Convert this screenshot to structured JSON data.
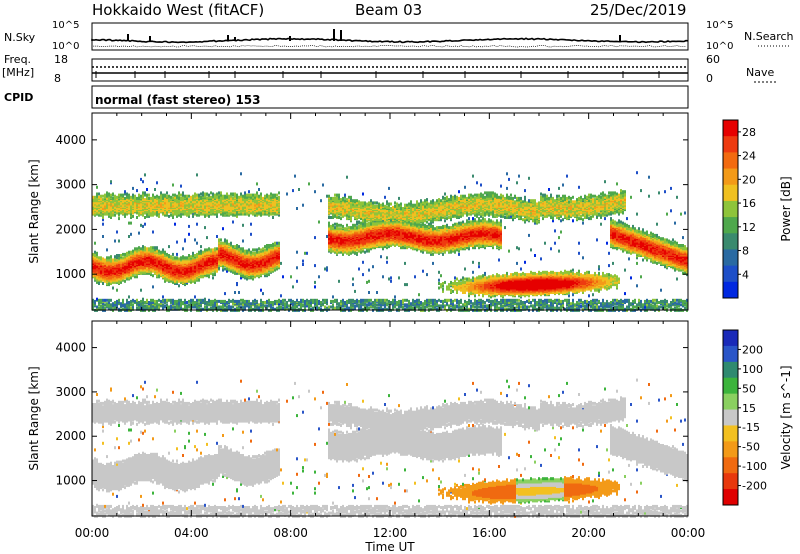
{
  "header": {
    "title": "Hokkaido West (fitACF)",
    "beam": "Beam 03",
    "date": "25/Dec/2019"
  },
  "status_panel": {
    "nsky_label": "N.Sky",
    "nsky_ticks": [
      "10^5",
      "10^0"
    ],
    "nsearch_label": "N.Search",
    "nsearch_ticks": [
      "10^5",
      "10^0"
    ],
    "freq_label": "Freq.",
    "freq_unit": "[MHz]",
    "freq_ticks": [
      "18",
      "8"
    ],
    "nave_label": "Nave",
    "nave_ticks": [
      "60",
      "0"
    ],
    "cpid_label": "CPID",
    "cpid_value": "normal (fast stereo) 153"
  },
  "colors": {
    "power": [
      "#0028e0",
      "#1e4fc8",
      "#2a6aa2",
      "#3a8a6e",
      "#4fa84c",
      "#8ec43a",
      "#f0c020",
      "#f39a18",
      "#f26a10",
      "#ee3a10",
      "#e60000"
    ],
    "velocity": [
      "#1a2ab8",
      "#2a55c8",
      "#2f8a70",
      "#3cb43c",
      "#8ad060",
      "#c8c8c8",
      "#f3c020",
      "#f39a18",
      "#f06a10",
      "#e8380c",
      "#e00000"
    ]
  },
  "chart_data": [
    {
      "type": "heatmap",
      "name": "power",
      "ylabel": "Slant Range [km]",
      "y_ticks": [
        1000,
        2000,
        3000,
        4000
      ],
      "ylim": [
        200,
        4600
      ],
      "colorbar": {
        "label": "Power [dB]",
        "ticks": [
          "28",
          "24",
          "20",
          "16",
          "12",
          "8",
          "4"
        ],
        "range": [
          0,
          30
        ]
      }
    },
    {
      "type": "heatmap",
      "name": "velocity",
      "ylabel": "Slant Range [km]",
      "y_ticks": [
        1000,
        2000,
        3000,
        4000
      ],
      "ylim": [
        200,
        4600
      ],
      "xlabel": "Time UT",
      "x_ticks": [
        "00:00",
        "04:00",
        "08:00",
        "12:00",
        "16:00",
        "20:00",
        "00:00"
      ],
      "xlim_hours": [
        0,
        24
      ],
      "colorbar": {
        "label": "Velocity [m s^-1]",
        "ticks": [
          "200",
          "100",
          "50",
          "15",
          "-15",
          "-50",
          "-100",
          "-200"
        ],
        "range": [
          -250,
          250
        ]
      }
    }
  ]
}
